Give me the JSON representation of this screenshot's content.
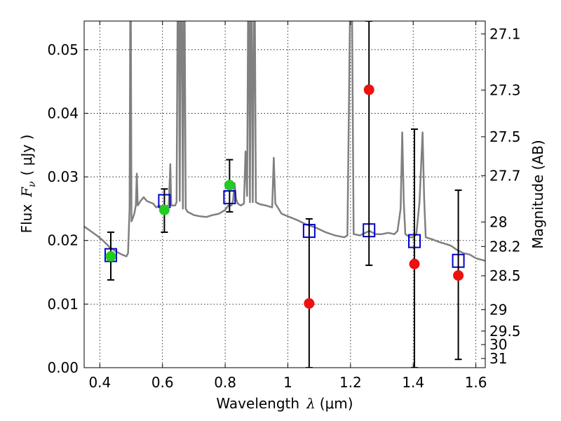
{
  "chart_data": {
    "type": "scatter",
    "xlabel": {
      "text": "Wavelength",
      "symbol": "λ",
      "unit": "(μm)"
    },
    "ylabel": {
      "text": "Flux",
      "symbol": "F",
      "subscript": "ν",
      "unit": "( μJy )"
    },
    "y2label": "Magnitude (AB)",
    "xlim": [
      0.35,
      1.63
    ],
    "ylim": [
      0.0,
      0.0545
    ],
    "grid": true,
    "x_ticks": [
      {
        "value": 0.4,
        "label": "0.4"
      },
      {
        "value": 0.6,
        "label": "0.6"
      },
      {
        "value": 0.8,
        "label": "0.8"
      },
      {
        "value": 1.0,
        "label": "1"
      },
      {
        "value": 1.2,
        "label": "1.2"
      },
      {
        "value": 1.4,
        "label": "1.4"
      },
      {
        "value": 1.6,
        "label": "1.6"
      }
    ],
    "y_ticks": [
      {
        "value": 0.0,
        "label": "0.00"
      },
      {
        "value": 0.01,
        "label": "0.01"
      },
      {
        "value": 0.02,
        "label": "0.02"
      },
      {
        "value": 0.03,
        "label": "0.03"
      },
      {
        "value": 0.04,
        "label": "0.04"
      },
      {
        "value": 0.05,
        "label": "0.05"
      }
    ],
    "mag_ticks": [
      {
        "value": 27.1,
        "label": "27.1"
      },
      {
        "value": 27.3,
        "label": "27.3"
      },
      {
        "value": 27.5,
        "label": "27.5"
      },
      {
        "value": 27.7,
        "label": "27.7"
      },
      {
        "value": 28.0,
        "label": "28"
      },
      {
        "value": 28.2,
        "label": "28.2"
      },
      {
        "value": 28.5,
        "label": "28.5"
      },
      {
        "value": 29.0,
        "label": "29"
      },
      {
        "value": 29.5,
        "label": "29.5"
      },
      {
        "value": 30.0,
        "label": "30"
      },
      {
        "value": 31.0,
        "label": "31"
      }
    ],
    "model_spectrum": {
      "color": "#808080",
      "points": [
        [
          0.35,
          0.0222
        ],
        [
          0.37,
          0.0215
        ],
        [
          0.39,
          0.0208
        ],
        [
          0.41,
          0.02
        ],
        [
          0.43,
          0.019
        ],
        [
          0.45,
          0.0183
        ],
        [
          0.47,
          0.0178
        ],
        [
          0.485,
          0.0175
        ],
        [
          0.49,
          0.018
        ],
        [
          0.495,
          0.025
        ],
        [
          0.497,
          0.0545
        ],
        [
          0.499,
          0.0545
        ],
        [
          0.501,
          0.023
        ],
        [
          0.505,
          0.0235
        ],
        [
          0.51,
          0.0242
        ],
        [
          0.515,
          0.0255
        ],
        [
          0.518,
          0.0305
        ],
        [
          0.521,
          0.0255
        ],
        [
          0.53,
          0.0262
        ],
        [
          0.54,
          0.0268
        ],
        [
          0.55,
          0.0262
        ],
        [
          0.56,
          0.026
        ],
        [
          0.57,
          0.0258
        ],
        [
          0.58,
          0.0252
        ],
        [
          0.59,
          0.0255
        ],
        [
          0.6,
          0.0253
        ],
        [
          0.61,
          0.0252
        ],
        [
          0.62,
          0.0256
        ],
        [
          0.625,
          0.032
        ],
        [
          0.628,
          0.0255
        ],
        [
          0.635,
          0.0255
        ],
        [
          0.64,
          0.0255
        ],
        [
          0.645,
          0.026
        ],
        [
          0.648,
          0.0545
        ],
        [
          0.652,
          0.0545
        ],
        [
          0.655,
          0.0262
        ],
        [
          0.658,
          0.0545
        ],
        [
          0.662,
          0.0545
        ],
        [
          0.665,
          0.025
        ],
        [
          0.668,
          0.0545
        ],
        [
          0.671,
          0.0545
        ],
        [
          0.674,
          0.025
        ],
        [
          0.68,
          0.0245
        ],
        [
          0.7,
          0.024
        ],
        [
          0.72,
          0.0238
        ],
        [
          0.74,
          0.0237
        ],
        [
          0.76,
          0.024
        ],
        [
          0.78,
          0.0242
        ],
        [
          0.8,
          0.0248
        ],
        [
          0.81,
          0.0255
        ],
        [
          0.82,
          0.0255
        ],
        [
          0.825,
          0.0262
        ],
        [
          0.83,
          0.029
        ],
        [
          0.835,
          0.0265
        ],
        [
          0.84,
          0.0258
        ],
        [
          0.85,
          0.0255
        ],
        [
          0.86,
          0.0258
        ],
        [
          0.865,
          0.034
        ],
        [
          0.87,
          0.027
        ],
        [
          0.873,
          0.0545
        ],
        [
          0.876,
          0.0545
        ],
        [
          0.879,
          0.026
        ],
        [
          0.882,
          0.0545
        ],
        [
          0.885,
          0.0545
        ],
        [
          0.888,
          0.026
        ],
        [
          0.892,
          0.0545
        ],
        [
          0.895,
          0.0545
        ],
        [
          0.898,
          0.026
        ],
        [
          0.91,
          0.0257
        ],
        [
          0.93,
          0.0255
        ],
        [
          0.95,
          0.0252
        ],
        [
          0.955,
          0.033
        ],
        [
          0.96,
          0.0258
        ],
        [
          0.97,
          0.025
        ],
        [
          0.98,
          0.0242
        ],
        [
          1.0,
          0.0238
        ],
        [
          1.03,
          0.0232
        ],
        [
          1.06,
          0.0225
        ],
        [
          1.09,
          0.022
        ],
        [
          1.12,
          0.0213
        ],
        [
          1.15,
          0.0208
        ],
        [
          1.18,
          0.0205
        ],
        [
          1.19,
          0.0208
        ],
        [
          1.198,
          0.0545
        ],
        [
          1.205,
          0.0545
        ],
        [
          1.21,
          0.021
        ],
        [
          1.23,
          0.0208
        ],
        [
          1.26,
          0.0215
        ],
        [
          1.28,
          0.021
        ],
        [
          1.3,
          0.021
        ],
        [
          1.32,
          0.0212
        ],
        [
          1.34,
          0.021
        ],
        [
          1.35,
          0.0215
        ],
        [
          1.36,
          0.025
        ],
        [
          1.365,
          0.037
        ],
        [
          1.37,
          0.026
        ],
        [
          1.375,
          0.021
        ],
        [
          1.39,
          0.0205
        ],
        [
          1.4,
          0.0205
        ],
        [
          1.41,
          0.021
        ],
        [
          1.42,
          0.026
        ],
        [
          1.43,
          0.037
        ],
        [
          1.435,
          0.0265
        ],
        [
          1.44,
          0.0205
        ],
        [
          1.46,
          0.0202
        ],
        [
          1.47,
          0.02
        ],
        [
          1.48,
          0.0198
        ],
        [
          1.5,
          0.0195
        ],
        [
          1.52,
          0.0192
        ],
        [
          1.54,
          0.0185
        ],
        [
          1.56,
          0.018
        ],
        [
          1.58,
          0.0178
        ],
        [
          1.6,
          0.0172
        ],
        [
          1.63,
          0.0168
        ]
      ]
    },
    "model_photometry": {
      "color": "#0000cc",
      "points": [
        {
          "x": 0.435,
          "y": 0.0177
        },
        {
          "x": 0.606,
          "y": 0.0262
        },
        {
          "x": 0.814,
          "y": 0.0268
        },
        {
          "x": 1.068,
          "y": 0.0215
        },
        {
          "x": 1.259,
          "y": 0.0216
        },
        {
          "x": 1.404,
          "y": 0.0199
        },
        {
          "x": 1.544,
          "y": 0.0168
        }
      ]
    },
    "observed_photometry": {
      "errorbar_color": "#000000",
      "points": [
        {
          "x": 0.435,
          "y": 0.0175,
          "yerr_low": 0.0138,
          "yerr_high": 0.0213,
          "color": "#22cc22"
        },
        {
          "x": 0.606,
          "y": 0.0248,
          "yerr_low": 0.0213,
          "yerr_high": 0.0281,
          "color": "#22cc22"
        },
        {
          "x": 0.814,
          "y": 0.0287,
          "yerr_low": 0.0245,
          "yerr_high": 0.0327,
          "color": "#22cc22"
        },
        {
          "x": 1.068,
          "y": 0.0101,
          "yerr_low": 0.0,
          "yerr_high": 0.0234,
          "color": "#ee1111"
        },
        {
          "x": 1.259,
          "y": 0.0437,
          "yerr_low": 0.0161,
          "yerr_high": 0.0545,
          "color": "#ee1111"
        },
        {
          "x": 1.404,
          "y": 0.0163,
          "yerr_low": 0.0,
          "yerr_high": 0.0375,
          "color": "#ee1111"
        },
        {
          "x": 1.544,
          "y": 0.0145,
          "yerr_low": 0.0013,
          "yerr_high": 0.0279,
          "color": "#ee1111"
        }
      ]
    }
  }
}
